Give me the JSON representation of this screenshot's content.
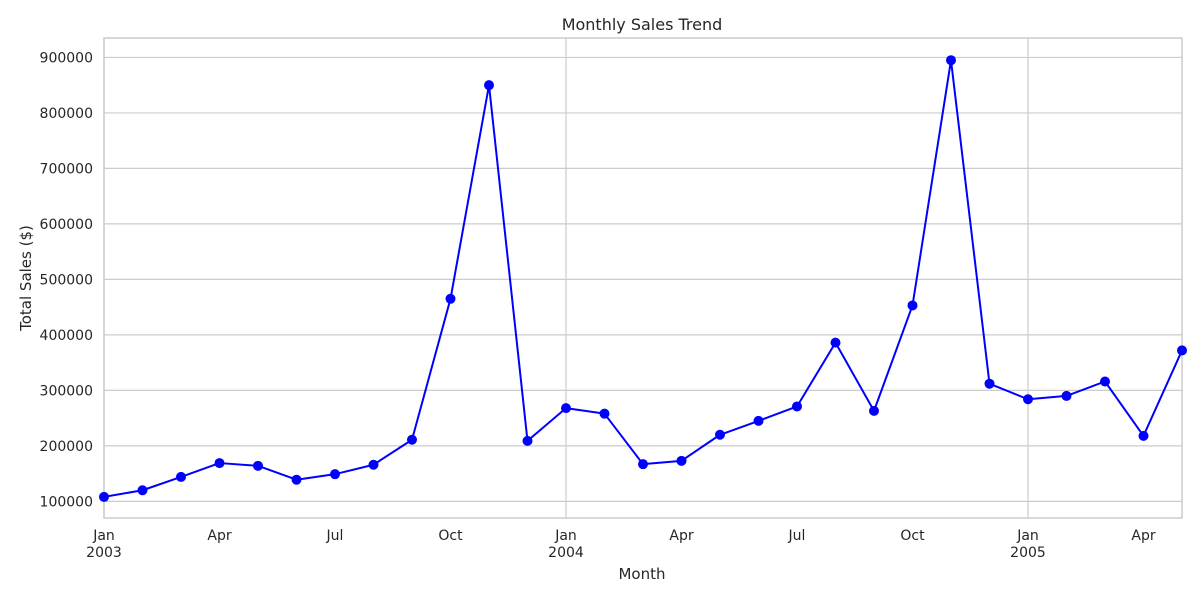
{
  "chart_data": {
    "type": "line",
    "title": "Monthly Sales Trend",
    "xlabel": "Month",
    "ylabel": "Total Sales ($)",
    "grid": true,
    "line_color": "#0000ff",
    "marker": "circle",
    "x": [
      "2003-01",
      "2003-02",
      "2003-03",
      "2003-04",
      "2003-05",
      "2003-06",
      "2003-07",
      "2003-08",
      "2003-09",
      "2003-10",
      "2003-11",
      "2003-12",
      "2004-01",
      "2004-02",
      "2004-03",
      "2004-04",
      "2004-05",
      "2004-06",
      "2004-07",
      "2004-08",
      "2004-09",
      "2004-10",
      "2004-11",
      "2004-12",
      "2005-01",
      "2005-02",
      "2005-03",
      "2005-04",
      "2005-05"
    ],
    "values": [
      108000,
      120000,
      144000,
      169000,
      164000,
      139000,
      149000,
      166000,
      211000,
      465000,
      850000,
      209000,
      268000,
      258000,
      167000,
      173000,
      220000,
      245000,
      271000,
      386000,
      263000,
      453000,
      895000,
      312000,
      284000,
      290000,
      316000,
      218000,
      372000
    ],
    "ylim": [
      70000,
      935000
    ],
    "yticks": [
      100000,
      200000,
      300000,
      400000,
      500000,
      600000,
      700000,
      800000,
      900000
    ],
    "ytick_labels": [
      "100000",
      "200000",
      "300000",
      "400000",
      "500000",
      "600000",
      "700000",
      "800000",
      "900000"
    ],
    "xticks": [
      {
        "x": "2003-01",
        "label": "Jan",
        "year": "2003",
        "major": true
      },
      {
        "x": "2003-04",
        "label": "Apr",
        "year": "",
        "major": false
      },
      {
        "x": "2003-07",
        "label": "Jul",
        "year": "",
        "major": false
      },
      {
        "x": "2003-10",
        "label": "Oct",
        "year": "",
        "major": false
      },
      {
        "x": "2004-01",
        "label": "Jan",
        "year": "2004",
        "major": true
      },
      {
        "x": "2004-04",
        "label": "Apr",
        "year": "",
        "major": false
      },
      {
        "x": "2004-07",
        "label": "Jul",
        "year": "",
        "major": false
      },
      {
        "x": "2004-10",
        "label": "Oct",
        "year": "",
        "major": false
      },
      {
        "x": "2005-01",
        "label": "Jan",
        "year": "2005",
        "major": true
      },
      {
        "x": "2005-04",
        "label": "Apr",
        "year": "",
        "major": false
      }
    ]
  }
}
